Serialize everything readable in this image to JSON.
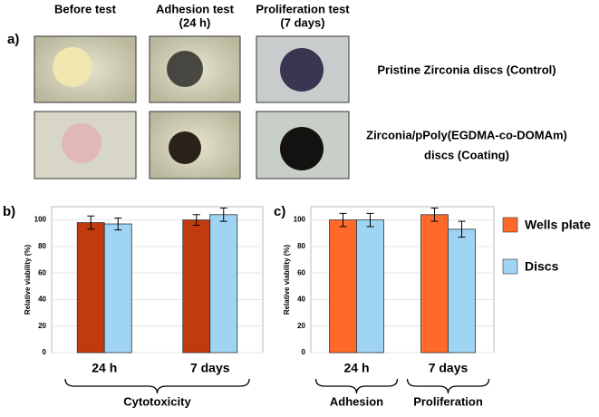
{
  "panel_a": {
    "label": "a)",
    "column_headers": [
      [
        "Before test"
      ],
      [
        "Adhesion test",
        "(24 h)"
      ],
      [
        "Proliferation test",
        "(7 days)"
      ]
    ],
    "row_labels": [
      [
        "Pristine Zirconia discs (Control)"
      ],
      [
        "Zirconia/pPoly(EGDMA-co-DOMAm)",
        "discs (Coating)"
      ]
    ]
  },
  "chart_data": [
    {
      "type": "bar",
      "panel_label": "b)",
      "y_label": "Relative viability (%)",
      "categories": [
        "24 h",
        "7 days"
      ],
      "group_labels": [
        "Cytotoxicity"
      ],
      "series": [
        {
          "color": "#c23b0e",
          "values": [
            98,
            100
          ],
          "errors": [
            5,
            4
          ]
        },
        {
          "color": "#9fd4f5",
          "values": [
            97,
            104
          ],
          "errors": [
            4.5,
            5
          ]
        }
      ],
      "ylim": [
        0,
        110
      ],
      "yticks": [
        0,
        20,
        40,
        60,
        80,
        100
      ],
      "grid": true
    },
    {
      "type": "bar",
      "panel_label": "c)",
      "y_label": "Relative viability (%)",
      "categories": [
        "24 h",
        "7 days"
      ],
      "group_labels": [
        "Adhesion",
        "Proliferation"
      ],
      "series": [
        {
          "name": "Wells plate",
          "color": "#ff6a2a",
          "values": [
            100,
            104
          ],
          "errors": [
            5,
            5
          ]
        },
        {
          "name": "Discs",
          "color": "#9fd4f5",
          "values": [
            100,
            93
          ],
          "errors": [
            5,
            6
          ]
        }
      ],
      "ylim": [
        0,
        110
      ],
      "yticks": [
        0,
        20,
        40,
        60,
        80,
        100
      ],
      "grid": true,
      "legend": "right"
    }
  ]
}
